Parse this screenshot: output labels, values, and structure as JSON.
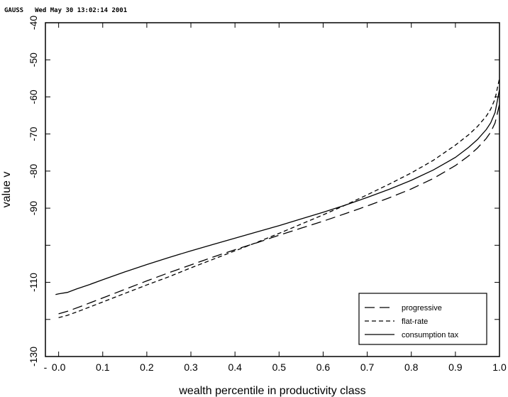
{
  "header": {
    "program": "GAUSS",
    "date": "Wed May 30 13:02:14 2001"
  },
  "chart_data": {
    "type": "line",
    "title": "",
    "xlabel": "wealth percentile in productivity class",
    "ylabel": "value v",
    "xlim": [
      -0.03,
      1.0
    ],
    "ylim": [
      -130,
      -40
    ],
    "xticks": [
      "-",
      "0.0",
      "0.1",
      "0.2",
      "0.3",
      "0.4",
      "0.5",
      "0.6",
      "0.7",
      "0.8",
      "0.9",
      "1.0"
    ],
    "yticks": [
      "-40",
      "-50",
      "-60",
      "-70",
      "-80",
      "-90",
      "",
      "-110",
      "",
      "-130"
    ],
    "legend_position": "bottom-right",
    "grid": false,
    "series": [
      {
        "name": "progressive",
        "style": "long-dash",
        "points": [
          [
            0.0,
            -118.5
          ],
          [
            0.02,
            -117.8
          ],
          [
            0.05,
            -116.5
          ],
          [
            0.1,
            -114.2
          ],
          [
            0.15,
            -111.9
          ],
          [
            0.2,
            -109.6
          ],
          [
            0.25,
            -107.4
          ],
          [
            0.3,
            -105.3
          ],
          [
            0.35,
            -103.2
          ],
          [
            0.4,
            -101.2
          ],
          [
            0.45,
            -99.3
          ],
          [
            0.5,
            -97.3
          ],
          [
            0.55,
            -95.4
          ],
          [
            0.6,
            -93.5
          ],
          [
            0.65,
            -91.5
          ],
          [
            0.7,
            -89.4
          ],
          [
            0.75,
            -87.2
          ],
          [
            0.8,
            -84.8
          ],
          [
            0.85,
            -82.0
          ],
          [
            0.9,
            -78.5
          ],
          [
            0.93,
            -75.9
          ],
          [
            0.95,
            -73.8
          ],
          [
            0.97,
            -71.2
          ],
          [
            0.98,
            -69.5
          ],
          [
            0.99,
            -67.0
          ],
          [
            1.0,
            -62.0
          ]
        ]
      },
      {
        "name": "flat-rate",
        "style": "short-dash",
        "points": [
          [
            0.0,
            -119.5
          ],
          [
            0.02,
            -118.9
          ],
          [
            0.05,
            -117.6
          ],
          [
            0.1,
            -115.3
          ],
          [
            0.15,
            -113.0
          ],
          [
            0.2,
            -110.7
          ],
          [
            0.25,
            -108.5
          ],
          [
            0.3,
            -106.1
          ],
          [
            0.35,
            -103.8
          ],
          [
            0.4,
            -101.5
          ],
          [
            0.45,
            -99.2
          ],
          [
            0.5,
            -96.8
          ],
          [
            0.55,
            -94.3
          ],
          [
            0.6,
            -91.8
          ],
          [
            0.65,
            -89.2
          ],
          [
            0.7,
            -86.4
          ],
          [
            0.75,
            -83.5
          ],
          [
            0.8,
            -80.5
          ],
          [
            0.85,
            -77.1
          ],
          [
            0.9,
            -73.0
          ],
          [
            0.93,
            -70.2
          ],
          [
            0.95,
            -68.0
          ],
          [
            0.97,
            -65.2
          ],
          [
            0.98,
            -63.3
          ],
          [
            0.99,
            -60.5
          ],
          [
            1.0,
            -55.0
          ]
        ]
      },
      {
        "name": "consumption tax",
        "style": "solid",
        "points": [
          [
            -0.007,
            -113.3
          ],
          [
            0.0,
            -113.1
          ],
          [
            0.02,
            -112.7
          ],
          [
            0.04,
            -111.8
          ],
          [
            0.07,
            -110.6
          ],
          [
            0.1,
            -109.3
          ],
          [
            0.15,
            -107.2
          ],
          [
            0.2,
            -105.2
          ],
          [
            0.25,
            -103.3
          ],
          [
            0.3,
            -101.5
          ],
          [
            0.35,
            -99.8
          ],
          [
            0.4,
            -98.1
          ],
          [
            0.45,
            -96.4
          ],
          [
            0.5,
            -94.7
          ],
          [
            0.55,
            -92.9
          ],
          [
            0.6,
            -91.1
          ],
          [
            0.65,
            -89.2
          ],
          [
            0.7,
            -87.1
          ],
          [
            0.75,
            -84.9
          ],
          [
            0.8,
            -82.5
          ],
          [
            0.85,
            -79.7
          ],
          [
            0.9,
            -76.3
          ],
          [
            0.93,
            -73.6
          ],
          [
            0.95,
            -71.5
          ],
          [
            0.97,
            -68.8
          ],
          [
            0.98,
            -67.0
          ],
          [
            0.99,
            -64.2
          ],
          [
            1.0,
            -58.0
          ]
        ]
      }
    ]
  }
}
